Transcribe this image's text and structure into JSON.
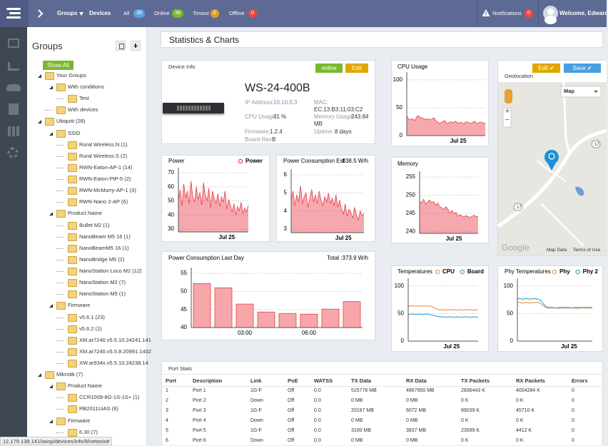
{
  "topbar": {
    "groups": "Groups",
    "devices": "Devices",
    "filters": [
      {
        "label": "All",
        "count": 38
      },
      {
        "label": "Online",
        "count": 38
      },
      {
        "label": "Timout",
        "count": 0
      },
      {
        "label": "Offline",
        "count": 0
      }
    ],
    "notifications": {
      "label": "Notifications",
      "count": 0
    },
    "welcome": "Welcome, Edward"
  },
  "sidebar": {
    "title": "Groups",
    "show_all": "Show All",
    "tree": [
      {
        "label": "Your Groups",
        "children": [
          {
            "label": "With conditions",
            "children": [
              {
                "label": "Test"
              }
            ]
          },
          {
            "label": "With devices"
          }
        ]
      },
      {
        "label": "Ubiquiti (28)",
        "children": [
          {
            "label": "SSID",
            "children": [
              {
                "label": "Rural Wireless.N (1)"
              },
              {
                "label": "Rural Wireless.S (2)"
              },
              {
                "label": "RWN-Eaton-AP-1 (14)"
              },
              {
                "label": "RWN-Eaton-PtP-5 (2)"
              },
              {
                "label": "RWN-McMurry-AP-1 (3)"
              },
              {
                "label": "RWN-Nano 2-AP (6)"
              }
            ]
          },
          {
            "label": "Product Name",
            "children": [
              {
                "label": "Bullet M2 (1)"
              },
              {
                "label": "NanoBeam M5 16 (1)"
              },
              {
                "label": "NanoBeamM5 16 (1)"
              },
              {
                "label": "NanoBridge M5 (2)"
              },
              {
                "label": "NanoStation Loco M2 (12)"
              },
              {
                "label": "NanoStation M2 (7)"
              },
              {
                "label": "NanoStation M5 (1)"
              }
            ]
          },
          {
            "label": "Firmware",
            "children": [
              {
                "label": "v5.6.1 (23)"
              },
              {
                "label": "v5.6.2 (1)"
              },
              {
                "label": "XM.ar7240.v5.5.10.24241.141"
              },
              {
                "label": "XM.ar7240.v5.5.8.20991.1402"
              },
              {
                "label": "XW.ar934x.v5.5.10.24238.14"
              }
            ]
          }
        ]
      },
      {
        "label": "Mikrotik (7)",
        "children": [
          {
            "label": "Product Name",
            "children": [
              {
                "label": "CCR1009-8G-1S-1S+ (1)"
              },
              {
                "label": "RB2011UiAS (6)"
              }
            ]
          },
          {
            "label": "Firmware",
            "children": [
              {
                "label": "6.30 (7)"
              }
            ]
          }
        ]
      }
    ]
  },
  "page_title": "Statistics & Charts",
  "device_info": {
    "title": "Device Info",
    "status": "online",
    "edit": "Edit",
    "model": "WS-24-400B",
    "ip_label": "IP Address:",
    "ip": "10.10.0.3",
    "mac_label": "MAC:",
    "mac": "EC:13:B3:11:03:C2",
    "cpu_label": "CPU Usage:",
    "cpu": "31 %",
    "memory_label": "Memory Usage:",
    "memory": "243.84 MB",
    "firmware_label": "Firmware:",
    "firmware": "1.2.4",
    "uptime_label": "Uptime:",
    "uptime": "8 days",
    "board_label": "Board Rev:",
    "board": "B"
  },
  "geolocation": {
    "edit": "Edit",
    "save": "Save",
    "title": "Geolocation",
    "map_type": "Map",
    "zoom_in": "+",
    "zoom_out": "−",
    "road_a": "17",
    "road_b": "17",
    "logo": "Google",
    "map_data": "Map Data",
    "terms": "Terms of Use"
  },
  "chart_data": [
    {
      "type": "area",
      "title": "CPU Usage",
      "color": "#e8414b",
      "categories": [
        null,
        null,
        null,
        null,
        null,
        null,
        null,
        null,
        null,
        null,
        null,
        null,
        null,
        null,
        null,
        null,
        null,
        null,
        null,
        "Jul 25",
        null,
        null,
        null,
        null,
        null,
        null,
        null,
        null,
        null,
        null
      ],
      "values": [
        35,
        28,
        30,
        27,
        36,
        33,
        31,
        29,
        30,
        28,
        32,
        26,
        22,
        24,
        27,
        21,
        25,
        23,
        26,
        22,
        24,
        21,
        25,
        23,
        22,
        26,
        21,
        24,
        23,
        22
      ],
      "ylim": [
        0,
        110
      ],
      "yticks": [
        0,
        50,
        100
      ],
      "grid": true
    },
    {
      "type": "area",
      "title": "Memory",
      "color": "#e8414b",
      "categories": [
        null,
        null,
        null,
        null,
        null,
        null,
        null,
        null,
        null,
        null,
        null,
        null,
        null,
        null,
        null,
        null,
        null,
        "Jul 25",
        null,
        null,
        null,
        null,
        null,
        null,
        null,
        null,
        null,
        null,
        null,
        null
      ],
      "values": [
        248.5,
        247.8,
        248.9,
        247.5,
        248.2,
        248.6,
        247.9,
        248.3,
        247.2,
        247.8,
        246.9,
        246.5,
        246.0,
        246.8,
        246.2,
        245.1,
        245.8,
        244.9,
        245.3,
        244.2,
        244.6,
        244.3,
        244.0,
        244.4,
        244.1,
        243.9,
        244.2,
        244.5,
        244.0,
        244.3
      ],
      "ylim": [
        239.5,
        256
      ],
      "yticks": [
        240,
        245,
        250,
        255
      ],
      "grid": true
    },
    {
      "type": "area",
      "title": "Power",
      "legend": "top-right",
      "categories": [
        null,
        null,
        null,
        null,
        null,
        null,
        null,
        null,
        null,
        null,
        null,
        null,
        null,
        null,
        null,
        null,
        null,
        null,
        null,
        null,
        null,
        null,
        null,
        null,
        null,
        null,
        null,
        "Jul 25",
        null,
        null,
        null,
        null,
        null,
        null,
        null,
        null,
        null,
        null,
        null,
        null
      ],
      "series": [
        {
          "name": "Power",
          "color": "#e8414b",
          "values": [
            50,
            58,
            46,
            62,
            52,
            57,
            48,
            64,
            53,
            49,
            60,
            51,
            56,
            47,
            63,
            54,
            50,
            59,
            45,
            57,
            52,
            48,
            55,
            46,
            53,
            49,
            57,
            44,
            51,
            47,
            42,
            48,
            40,
            46,
            43,
            49,
            41,
            45,
            42,
            47
          ]
        }
      ],
      "ylim": [
        28,
        72
      ],
      "yticks": [
        30,
        40,
        50,
        60,
        70
      ],
      "grid": true
    },
    {
      "type": "area",
      "title": "Power Consumption Est",
      "annotation": "838.5 W/h",
      "color": "#e8414b",
      "categories": [
        null,
        null,
        null,
        null,
        null,
        null,
        null,
        null,
        null,
        null,
        null,
        null,
        null,
        null,
        null,
        null,
        null,
        null,
        null,
        null,
        null,
        null,
        null,
        null,
        null,
        null,
        null,
        null,
        "Jul 25",
        null,
        null,
        null,
        null,
        null,
        null,
        null,
        null,
        null,
        null,
        null
      ],
      "values": [
        4.6,
        5.1,
        4.3,
        4.9,
        4.5,
        5.4,
        4.4,
        4.8,
        5.0,
        4.2,
        4.7,
        5.2,
        4.5,
        4.9,
        4.4,
        5.1,
        4.6,
        4.3,
        4.8,
        4.5,
        5.0,
        4.4,
        4.7,
        4.3,
        4.9,
        4.2,
        4.6,
        4.1,
        3.8,
        4.4,
        3.7,
        4.1,
        3.9,
        3.6,
        4.2,
        3.8,
        3.5,
        4.0,
        3.7,
        3.9
      ],
      "ylim": [
        2.8,
        6.2
      ],
      "yticks": [
        3,
        4,
        5,
        6
      ],
      "grid": true
    },
    {
      "type": "bar",
      "title": "Power Consumption Last Day",
      "annotation": "Total :373.9 W/h",
      "color": "#e8414b",
      "categories": [
        null,
        null,
        "03:00",
        null,
        null,
        "06:00",
        null,
        null
      ],
      "values": [
        52.2,
        51.0,
        46.5,
        44.3,
        43.9,
        43.7,
        45.1,
        47.2
      ],
      "ylim": [
        40,
        56
      ],
      "yticks": [
        40,
        45,
        50,
        55
      ],
      "grid": true
    },
    {
      "type": "line",
      "title": "Temperatures",
      "legend": "top-right",
      "categories": [
        null,
        null,
        null,
        null,
        null,
        null,
        null,
        null,
        null,
        null,
        null,
        null,
        null,
        null,
        null,
        null,
        null,
        null,
        "Jul 25",
        null,
        null,
        null,
        null,
        null,
        null,
        null,
        null,
        null,
        null,
        null
      ],
      "series": [
        {
          "name": "CPU",
          "color": "#f39c4a",
          "values": [
            63,
            64,
            64,
            63,
            64,
            63,
            64,
            64,
            63,
            64,
            62,
            60,
            58,
            57,
            57,
            57,
            56,
            57,
            57,
            57,
            56,
            57,
            57,
            56,
            57,
            57,
            57,
            56,
            57,
            57
          ]
        },
        {
          "name": "Board",
          "color": "#3aaed0",
          "values": [
            48,
            49,
            49,
            48,
            49,
            49,
            48,
            49,
            49,
            48,
            47,
            46,
            45,
            44,
            44,
            44,
            43,
            44,
            44,
            43,
            44,
            44,
            43,
            44,
            44,
            44,
            43,
            44,
            44,
            43
          ]
        }
      ],
      "ylim": [
        0,
        110
      ],
      "yticks": [
        0,
        50,
        100
      ],
      "grid": true
    },
    {
      "type": "line",
      "title": "Phy Temperatures",
      "legend": "top-right",
      "categories": [
        null,
        null,
        null,
        null,
        null,
        null,
        null,
        null,
        null,
        null,
        null,
        null,
        null,
        null,
        null,
        null,
        null,
        null,
        null,
        null,
        "Jul 25",
        null,
        null,
        null,
        null,
        null,
        null,
        null,
        null,
        null
      ],
      "series": [
        {
          "name": "Phy",
          "color": "#f39c4a",
          "values": [
            70,
            70,
            69,
            70,
            70,
            69,
            70,
            70,
            70,
            68,
            64,
            61,
            60,
            60,
            60,
            60,
            59,
            60,
            60,
            60,
            60,
            60,
            60,
            59,
            60,
            60,
            60,
            60,
            60,
            60
          ]
        },
        {
          "name": "Phy 2",
          "color": "#3aaed0",
          "values": [
            77,
            77,
            76,
            77,
            77,
            76,
            77,
            77,
            76,
            74,
            68,
            63,
            61,
            61,
            61,
            60,
            61,
            61,
            61,
            61,
            61,
            60,
            61,
            61,
            61,
            61,
            61,
            61,
            61,
            61
          ]
        }
      ],
      "ylim": [
        0,
        110
      ],
      "yticks": [
        0,
        50,
        100
      ],
      "grid": true
    }
  ],
  "port_stats": {
    "title": "Port Stats",
    "columns": [
      "Port",
      "Description",
      "Link",
      "PoE",
      "WATSS",
      "TX Data",
      "RX Data",
      "TX Packets",
      "RX Packets",
      "Errors"
    ],
    "rows": [
      [
        "1",
        "Port 1",
        "1G-F",
        "Off",
        "0.0",
        "515776 MB",
        "4867950 MB",
        "2836443 K",
        "4004284 K",
        "0"
      ],
      [
        "2",
        "Port 2",
        "Down",
        "Off",
        "0.0",
        "0 MB",
        "0 MB",
        "0 K",
        "0 K",
        "0"
      ],
      [
        "3",
        "Port 3",
        "1G-F",
        "Off",
        "0.0",
        "20187 MB",
        "6072 MB",
        "89039 K",
        "45710 K",
        "0"
      ],
      [
        "4",
        "Port 4",
        "Down",
        "Off",
        "0.0",
        "0 MB",
        "0 MB",
        "0 K",
        "0 K",
        "0"
      ],
      [
        "5",
        "Port 5",
        "1G-F",
        "Off",
        "0.0",
        "3100 MB",
        "3837 MB",
        "23599 K",
        "4412 K",
        "0"
      ],
      [
        "6",
        "Port 6",
        "Down",
        "Off",
        "0.0",
        "0 MB",
        "0 MB",
        "0 K",
        "0 K",
        "0"
      ]
    ]
  },
  "status_bar": "12.179.138.141/iwisp/devices/info/9/netonix#"
}
